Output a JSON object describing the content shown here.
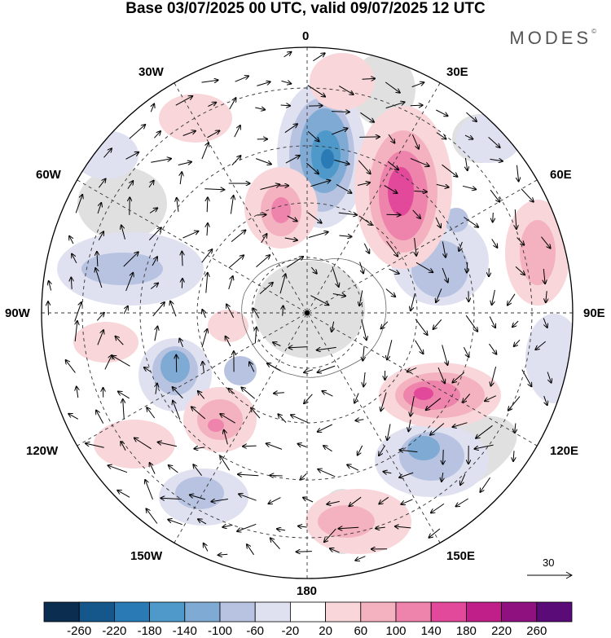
{
  "title": "Base 03/07/2025 00 UTC, valid 09/07/2025 12 UTC",
  "brand": "MODES",
  "brand_mark": "©",
  "meridian_labels": {
    "m0": "0",
    "m30e": "30E",
    "m60e": "60E",
    "m90e": "90E",
    "m120e": "120E",
    "m150e": "150E",
    "m180": "180",
    "m150w": "150W",
    "m120w": "120W",
    "m90w": "90W",
    "m60w": "60W",
    "m30w": "30W"
  },
  "reference_vector": {
    "label": "30"
  },
  "colorbar": {
    "ticks": [
      "-260",
      "-220",
      "-180",
      "-140",
      "-100",
      "-60",
      "-20",
      "20",
      "60",
      "100",
      "140",
      "180",
      "220",
      "260"
    ],
    "colors": [
      "#0b2d4f",
      "#15578a",
      "#2a7ab6",
      "#4e99c9",
      "#7faad3",
      "#b7c3e0",
      "#dfe1f0",
      "#ffffff",
      "#f8d6d9",
      "#f4b2c0",
      "#ee83ab",
      "#e2499a",
      "#c01f8a",
      "#8e117f",
      "#5a0b78"
    ]
  },
  "map": {
    "projection": "south polar stereographic",
    "fields": [
      "geopotential height anomaly (shaded)",
      "wind vectors"
    ]
  }
}
